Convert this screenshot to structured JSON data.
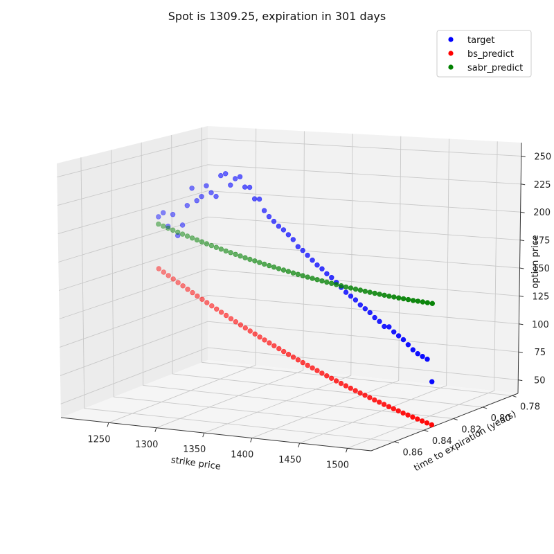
{
  "chart_data": {
    "type": "scatter",
    "projection": "3d",
    "title": "Spot is 1309.25, expiration in 301 days",
    "xlabel": "strike price",
    "ylabel": "time to expiration (years)",
    "zlabel": "option price",
    "x_ticks": [
      "1250",
      "1300",
      "1350",
      "1400",
      "1450",
      "1500"
    ],
    "y_ticks": [
      "0.78",
      "0.80",
      "0.82",
      "0.84",
      "0.86"
    ],
    "z_ticks": [
      "50",
      "75",
      "100",
      "125",
      "150",
      "175",
      "200",
      "225",
      "250"
    ],
    "xlim": [
      1200,
      1525
    ],
    "ylim": [
      0.776,
      0.876
    ],
    "zlim": [
      38,
      262
    ],
    "grid": true,
    "legend_position": "top-right",
    "expiration_years": 0.825,
    "x": [
      1225,
      1230,
      1235,
      1240,
      1245,
      1250,
      1255,
      1260,
      1265,
      1270,
      1275,
      1280,
      1285,
      1290,
      1295,
      1300,
      1305,
      1310,
      1315,
      1320,
      1325,
      1330,
      1335,
      1340,
      1345,
      1350,
      1355,
      1360,
      1365,
      1370,
      1375,
      1380,
      1385,
      1390,
      1395,
      1400,
      1405,
      1410,
      1415,
      1420,
      1425,
      1430,
      1435,
      1440,
      1445,
      1450,
      1455,
      1460,
      1465,
      1470,
      1475,
      1480,
      1485,
      1490,
      1495,
      1500,
      1505,
      1510
    ],
    "series": [
      {
        "name": "target",
        "color": "#0000ff",
        "values": [
          197,
          201,
          189,
          200,
          181,
          191,
          209,
          225,
          214,
          218,
          228,
          222,
          219,
          238,
          240,
          230,
          236,
          238,
          229,
          229,
          219,
          219,
          209,
          204,
          200,
          196,
          193,
          189,
          185,
          179,
          176,
          172,
          168,
          164,
          161,
          157,
          154,
          150,
          146,
          142,
          139,
          136,
          132,
          129,
          126,
          122,
          119,
          115,
          115,
          111,
          108,
          105,
          101,
          97,
          94,
          92,
          90,
          71
        ]
      },
      {
        "name": "bs_predict",
        "color": "#ff0000",
        "values": [
          149.6,
          146.8,
          144.0,
          141.2,
          138.4,
          135.7,
          133.0,
          130.3,
          127.6,
          125.0,
          122.4,
          119.8,
          117.3,
          114.8,
          112.3,
          109.8,
          107.4,
          105.0,
          102.6,
          100.3,
          98.0,
          95.7,
          93.5,
          91.3,
          89.1,
          86.9,
          84.8,
          82.7,
          80.6,
          78.6,
          76.6,
          74.6,
          72.7,
          70.8,
          68.9,
          67.0,
          65.2,
          63.4,
          61.6,
          59.9,
          58.2,
          56.5,
          54.9,
          53.3,
          51.7,
          50.1,
          48.6,
          47.1,
          45.6,
          44.2,
          42.8,
          41.4,
          40.1,
          38.8,
          37.5,
          36.2,
          35.0,
          33.8
        ]
      },
      {
        "name": "sabr_predict",
        "color": "#008000",
        "values": [
          190.3,
          188.8,
          187.2,
          185.7,
          184.2,
          182.7,
          181.2,
          179.8,
          178.4,
          177.0,
          175.6,
          174.3,
          173.0,
          171.7,
          170.4,
          169.2,
          168.0,
          166.8,
          165.6,
          164.5,
          163.4,
          162.3,
          161.2,
          160.2,
          159.2,
          158.2,
          157.2,
          156.3,
          155.3,
          154.4,
          153.6,
          152.7,
          151.9,
          151.1,
          150.3,
          149.5,
          148.8,
          148.1,
          147.4,
          146.7,
          146.1,
          145.5,
          144.9,
          144.3,
          143.7,
          143.2,
          142.7,
          142.2,
          141.7,
          141.3,
          140.9,
          140.5,
          140.1,
          139.7,
          139.4,
          139.1,
          138.8,
          138.5
        ]
      }
    ]
  }
}
